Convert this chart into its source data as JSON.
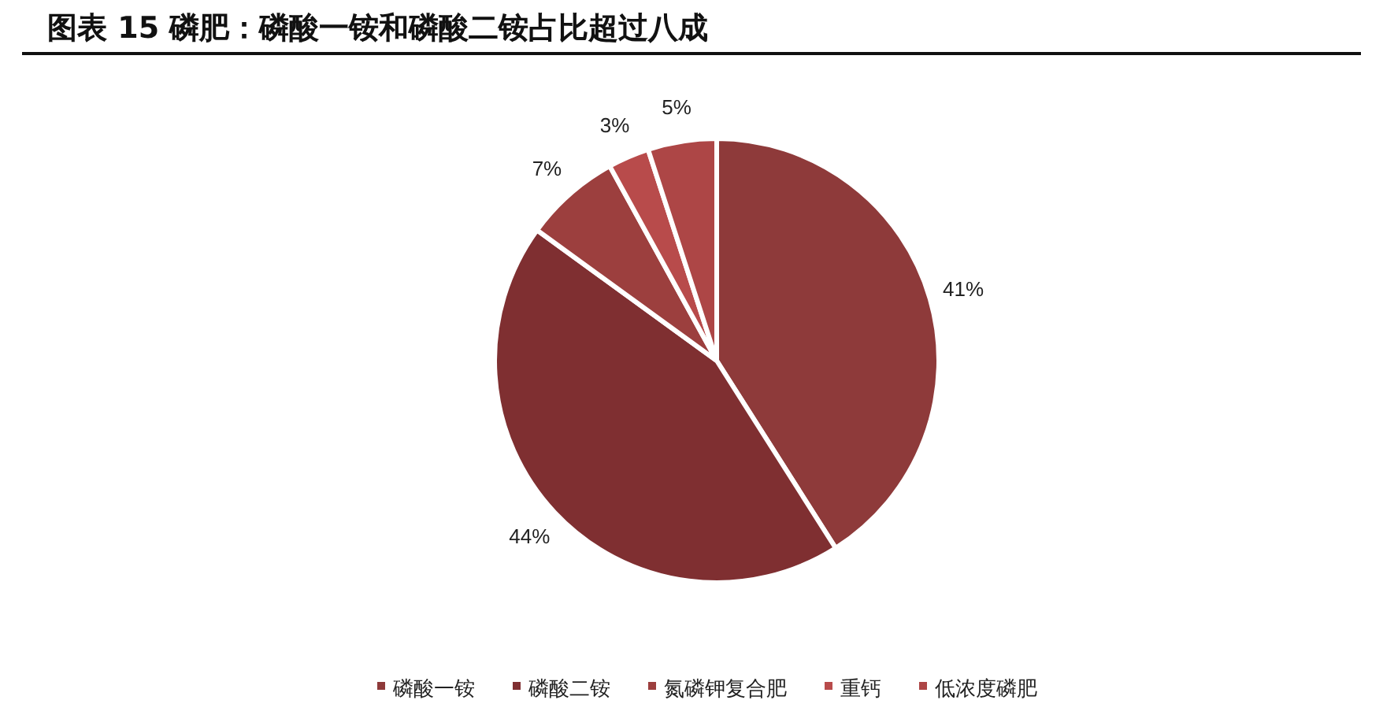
{
  "chart_data": {
    "type": "pie",
    "title": "图表 15 磷肥：磷酸一铵和磷酸二铵占比超过八成",
    "categories": [
      "磷酸一铵",
      "磷酸二铵",
      "氮磷钾复合肥",
      "重钙",
      "低浓度磷肥"
    ],
    "values": [
      41,
      44,
      7,
      3,
      5
    ],
    "colors": [
      "#8e3a3a",
      "#7f2f31",
      "#9c3f3e",
      "#b84b4b",
      "#ad4646"
    ],
    "value_labels": [
      "41%",
      "44%",
      "7%",
      "3%",
      "5%"
    ],
    "legend": "bottom"
  }
}
